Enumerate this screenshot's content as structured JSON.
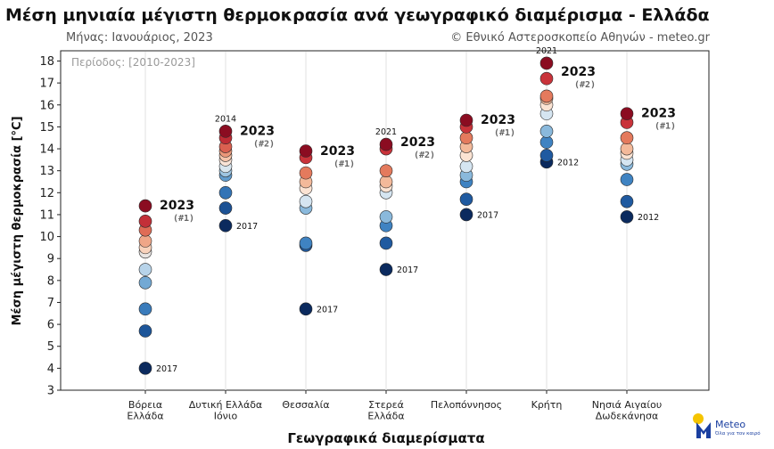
{
  "title": "Μέση μηνιαία μέγιστη θερμοκρασία ανά γεωγραφικό διαμέρισμα - Ελλάδα",
  "subtitle_left": "Μήνας: Ιανουάριος, 2023",
  "subtitle_right": "© Εθνικό Αστεροσκοπείο Αθηνών - meteo.gr",
  "logo": {
    "name": "Meteo",
    "tagline": "Όλα για τον καιρό",
    "icon": "meteo-logo-icon"
  },
  "chart_data": {
    "type": "scatter",
    "period_label": "Περίοδος: [2010-2023]",
    "xlabel": "Γεωγραφικά διαμερίσματα",
    "ylabel": "Μέση μέγιστη θερμοκρασία [°C]",
    "ylim": [
      3,
      18.5
    ],
    "yticks": [
      3,
      4,
      5,
      6,
      7,
      8,
      9,
      10,
      11,
      12,
      13,
      14,
      15,
      16,
      17,
      18
    ],
    "grid": "vertical",
    "color_scale": [
      "#0b2a5e",
      "#1f5aa0",
      "#3f83c2",
      "#8ab9dc",
      "#d5e5f1",
      "#fbe3d3",
      "#f3b99a",
      "#e47a5d",
      "#c9333a",
      "#8b0c21"
    ],
    "categories": [
      {
        "label": [
          "Βόρεια",
          "Ελλάδα"
        ],
        "values": [
          4.0,
          5.7,
          6.7,
          7.9,
          8.5,
          9.3,
          9.5,
          9.8,
          10.3,
          10.7,
          11.4
        ],
        "min_label": "2017",
        "max_label": "2023",
        "rank_label": "(#1)"
      },
      {
        "label": [
          "Δυτική Ελλάδα",
          "Ιόνιο"
        ],
        "values": [
          10.5,
          11.3,
          12.0,
          12.8,
          13.0,
          13.2,
          13.5,
          13.7,
          13.9,
          14.1,
          14.5,
          14.8
        ],
        "min_label": "2017",
        "max_label": "2014",
        "highlight_label": "2023",
        "rank_label": "(#2)"
      },
      {
        "label": [
          "Θεσσαλία"
        ],
        "values": [
          6.7,
          9.6,
          9.7,
          11.3,
          11.6,
          12.2,
          12.5,
          12.9,
          13.6,
          13.9
        ],
        "min_label": "2017",
        "highlight_label": "2023",
        "rank_label": "(#1)"
      },
      {
        "label": [
          "Στερεά",
          "Ελλάδα"
        ],
        "values": [
          8.5,
          9.7,
          10.5,
          10.9,
          12.0,
          12.3,
          12.5,
          13.0,
          14.0,
          14.2
        ],
        "min_label": "2017",
        "max_label": "2021",
        "highlight_label": "2023",
        "rank_label": "(#2)"
      },
      {
        "label": [
          "Πελοπόννησος"
        ],
        "values": [
          11.0,
          11.7,
          12.5,
          12.8,
          13.2,
          13.7,
          14.1,
          14.5,
          15.0,
          15.3
        ],
        "min_label": "2017",
        "max_label": "2023",
        "rank_label": "(#1)"
      },
      {
        "label": [
          "Κρήτη"
        ],
        "values": [
          13.4,
          13.7,
          14.3,
          14.8,
          15.6,
          16.0,
          16.3,
          16.4,
          17.2,
          17.9
        ],
        "min_label": "2012",
        "max_label": "2021",
        "highlight_label": "2023",
        "rank_label": "(#2)"
      },
      {
        "label": [
          "Νησιά Αιγαίου",
          "Δωδεκάνησα"
        ],
        "values": [
          10.9,
          11.6,
          12.6,
          13.3,
          13.5,
          13.8,
          14.0,
          14.5,
          15.2,
          15.6
        ],
        "min_label": "2012",
        "max_label": "2023",
        "rank_label": "(#1)"
      }
    ]
  }
}
